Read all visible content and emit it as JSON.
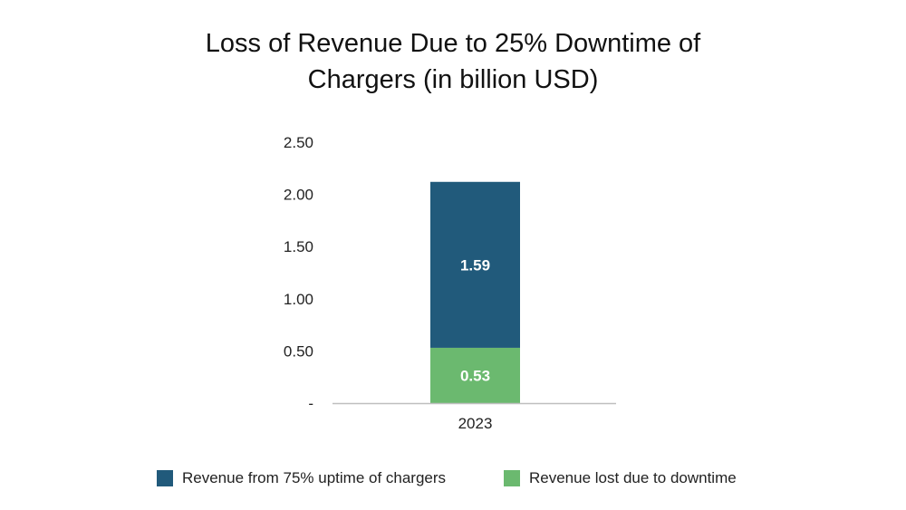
{
  "chart_data": {
    "type": "bar",
    "stacked": true,
    "title": "Loss of Revenue Due to 25% Downtime of Chargers (in billion USD)",
    "title_lines": [
      "Loss of Revenue Due to 25% Downtime of",
      "Chargers (in billion USD)"
    ],
    "xlabel": "",
    "ylabel": "",
    "categories": [
      "2023"
    ],
    "ylim": [
      0,
      2.5
    ],
    "yticks": [
      0,
      0.5,
      1.0,
      1.5,
      2.0,
      2.5
    ],
    "ytick_labels": [
      "-",
      "0.50",
      "1.00",
      "1.50",
      "2.00",
      "2.50"
    ],
    "grid": false,
    "legend_position": "bottom",
    "series": [
      {
        "name": "Revenue lost due to downtime",
        "values": [
          0.53
        ],
        "labels": [
          "0.53"
        ],
        "color": "#6bb96f"
      },
      {
        "name": "Revenue from 75% uptime of chargers",
        "values": [
          1.59
        ],
        "labels": [
          "1.59"
        ],
        "color": "#215a7b"
      }
    ]
  }
}
